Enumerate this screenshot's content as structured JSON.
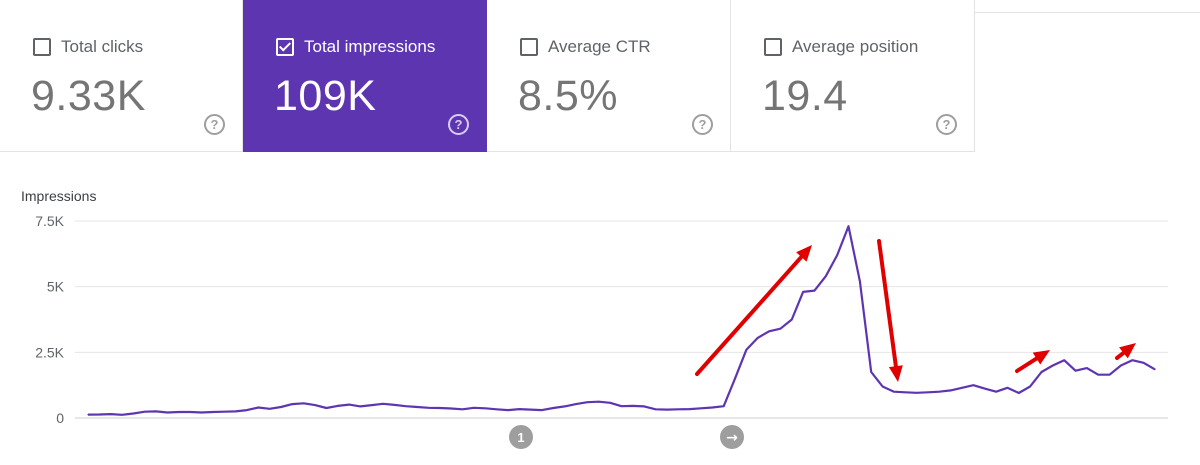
{
  "metrics": {
    "clicks": {
      "label": "Total clicks",
      "value": "9.33K",
      "help": "?"
    },
    "impressions": {
      "label": "Total impressions",
      "value": "109K",
      "help": "?"
    },
    "ctr": {
      "label": "Average CTR",
      "value": "8.5%",
      "help": "?"
    },
    "position": {
      "label": "Average position",
      "value": "19.4",
      "help": "?"
    }
  },
  "colors": {
    "accent": "#5e35b1",
    "line": "#5e35b1",
    "annotation_arrow": "#e00000",
    "grid": "#e6e6e6"
  },
  "markers": [
    "1",
    "→"
  ],
  "chart_data": {
    "type": "line",
    "ylabel": "Impressions",
    "yticks": [
      "0",
      "2.5K",
      "5K",
      "7.5K"
    ],
    "ylim": [
      0,
      7500
    ],
    "grid": true,
    "series": [
      {
        "values": [
          130,
          135,
          150,
          120,
          170,
          240,
          250,
          210,
          230,
          230,
          210,
          230,
          240,
          250,
          300,
          400,
          350,
          420,
          530,
          560,
          490,
          380,
          460,
          510,
          440,
          490,
          540,
          500,
          450,
          420,
          390,
          380,
          360,
          330,
          390,
          370,
          330,
          300,
          340,
          320,
          300,
          380,
          440,
          530,
          600,
          620,
          580,
          450,
          460,
          440,
          330,
          320,
          330,
          340,
          370,
          400,
          450,
          1500,
          2600,
          3050,
          3300,
          3400,
          3750,
          4800,
          4850,
          5400,
          6200,
          7300,
          5200,
          1750,
          1200,
          1000,
          980,
          960,
          980,
          1000,
          1050,
          1150,
          1250,
          1120,
          1000,
          1150,
          950,
          1200,
          1750,
          2000,
          2200,
          1800,
          1900,
          1650,
          1650,
          2000,
          2200,
          2100,
          1850
        ]
      }
    ],
    "annotations": [
      "arrow-up",
      "arrow-down",
      "arrow-up",
      "arrow-up"
    ]
  }
}
